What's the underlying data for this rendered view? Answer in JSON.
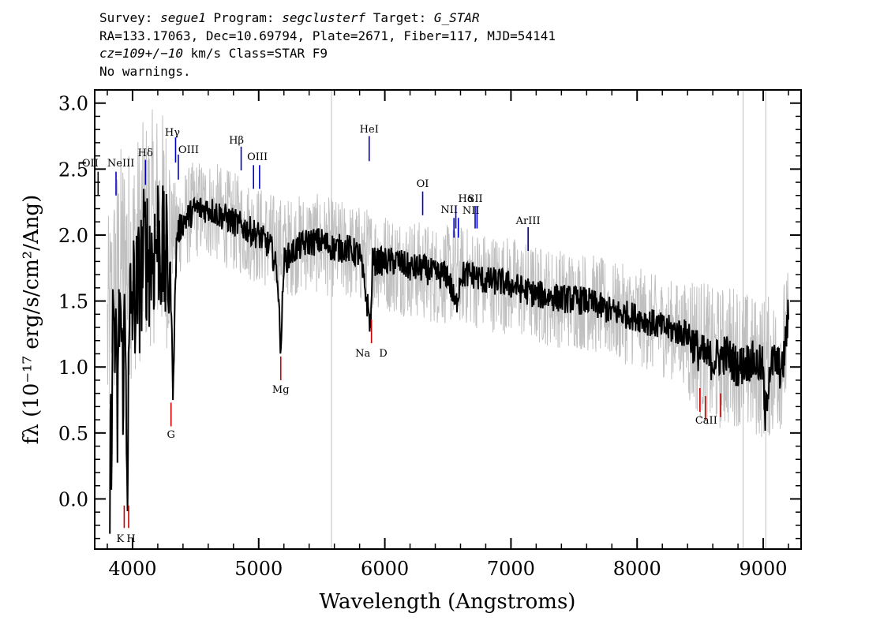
{
  "header": {
    "line1": [
      {
        "t": "Survey: ",
        "i": false
      },
      {
        "t": "segue1",
        "i": true
      },
      {
        "t": " Program: ",
        "i": false
      },
      {
        "t": "segclusterf",
        "i": true
      },
      {
        "t": " Target: ",
        "i": false
      },
      {
        "t": "G_STAR",
        "i": true
      }
    ],
    "line2": "RA=133.17063, Dec=10.69794, Plate=2671, Fiber=117, MJD=54141",
    "line3": [
      {
        "t": "cz=109+/−10",
        "i": true
      },
      {
        "t": " km/s Class=STAR F9",
        "i": false
      }
    ],
    "line4": "No warnings."
  },
  "chart_data": {
    "type": "line",
    "title": "",
    "xlabel": "Wavelength (Angstroms)",
    "ylabel": "fλ (10⁻¹⁷ erg/s/cm²/Ang)",
    "xlim": [
      3700,
      9300
    ],
    "ylim": [
      -0.38,
      3.1
    ],
    "xticks": [
      4000,
      5000,
      6000,
      7000,
      8000,
      9000
    ],
    "yticks": [
      "0.0",
      "0.5",
      "1.0",
      "1.5",
      "2.0",
      "2.5",
      "3.0"
    ],
    "series": [
      {
        "role": "smoothed flux",
        "color": "#000000",
        "x": [
          3820,
          3850,
          3880,
          3900,
          3920,
          3940,
          3960,
          3980,
          4000,
          4050,
          4100,
          4150,
          4200,
          4250,
          4300,
          4320,
          4350,
          4400,
          4500,
          4600,
          4700,
          4800,
          4900,
          5000,
          5100,
          5150,
          5170,
          5180,
          5200,
          5300,
          5400,
          5500,
          5600,
          5700,
          5800,
          5890,
          5900,
          6000,
          6100,
          6200,
          6300,
          6400,
          6500,
          6563,
          6600,
          6700,
          6800,
          6900,
          7000,
          7200,
          7400,
          7600,
          7800,
          8000,
          8200,
          8400,
          8500,
          8600,
          8700,
          8800,
          8900,
          9000,
          9010,
          9050,
          9100,
          9150,
          9200
        ],
        "y": [
          0.0,
          1.5,
          0.6,
          1.6,
          0.9,
          1.3,
          0.3,
          1.4,
          1.5,
          1.6,
          1.9,
          1.8,
          2.0,
          1.8,
          1.7,
          0.85,
          2.0,
          2.1,
          2.2,
          2.2,
          2.15,
          2.1,
          2.05,
          2.0,
          1.9,
          1.7,
          1.2,
          1.25,
          1.8,
          1.9,
          1.95,
          1.95,
          1.9,
          1.9,
          1.85,
          1.3,
          1.8,
          1.8,
          1.8,
          1.75,
          1.75,
          1.7,
          1.7,
          1.45,
          1.7,
          1.7,
          1.65,
          1.65,
          1.62,
          1.55,
          1.52,
          1.5,
          1.42,
          1.38,
          1.3,
          1.25,
          1.1,
          1.05,
          1.1,
          1.0,
          1.05,
          1.0,
          0.55,
          1.0,
          1.05,
          0.95,
          1.4
        ]
      },
      {
        "role": "raw flux",
        "color": "#c0c0c0",
        "x": [
          3800,
          3900,
          4000,
          4100,
          4200,
          4300,
          4400,
          4500,
          4600,
          4800,
          5000,
          5200,
          5400,
          5600,
          5800,
          6000,
          6200,
          6400,
          6600,
          6800,
          7000,
          7200,
          7400,
          7600,
          7800,
          8000,
          8200,
          8400,
          8600,
          8800,
          8900,
          9000,
          9100,
          9200
        ],
        "y": [
          1.2,
          1.8,
          1.8,
          2.0,
          2.1,
          2.0,
          2.1,
          2.2,
          2.2,
          2.1,
          2.0,
          1.9,
          1.95,
          1.9,
          1.85,
          1.8,
          1.75,
          1.7,
          1.7,
          1.65,
          1.62,
          1.55,
          1.52,
          1.5,
          1.42,
          1.38,
          1.3,
          1.25,
          1.05,
          1.1,
          1.0,
          1.0,
          1.0,
          1.2
        ]
      }
    ],
    "emission_lines": [
      {
        "label": "OII",
        "x": 3727,
        "y_low": 2.3,
        "y_high": 2.48,
        "color": "#000000"
      },
      {
        "label": "NeIII",
        "x": 3869,
        "y_low": 2.3,
        "y_high": 2.48,
        "color": "#0000cc"
      },
      {
        "label": "Hδ",
        "x": 4102,
        "y_low": 2.38,
        "y_high": 2.57,
        "color": "#0000cc"
      },
      {
        "label": "Hγ",
        "x": 4341,
        "y_low": 2.55,
        "y_high": 2.74,
        "color": "#0000cc"
      },
      {
        "label": "OIII",
        "x": 4363,
        "y_low": 2.42,
        "y_high": 2.61,
        "color": "#0000cc"
      },
      {
        "label": "Hβ",
        "x": 4861,
        "y_low": 2.49,
        "y_high": 2.67,
        "color": "#0000cc"
      },
      {
        "label": "OIII",
        "x": 4959,
        "y_low": 2.35,
        "y_high": 2.53,
        "color": "#0000cc"
      },
      {
        "label": "OIII",
        "x": 5007,
        "y_low": 2.35,
        "y_high": 2.53,
        "color": "#0000cc"
      },
      {
        "label": "HeI",
        "x": 5876,
        "y_low": 2.56,
        "y_high": 2.75,
        "color": "#0000cc"
      },
      {
        "label": "OI",
        "x": 6300,
        "y_low": 2.15,
        "y_high": 2.33,
        "color": "#0000cc"
      },
      {
        "label": "NII",
        "x": 6548,
        "y_low": 1.98,
        "y_high": 2.13,
        "color": "#0000cc"
      },
      {
        "label": "Hα",
        "x": 6563,
        "y_low": 2.05,
        "y_high": 2.22,
        "color": "#0000cc"
      },
      {
        "label": "NII",
        "x": 6583,
        "y_low": 1.98,
        "y_high": 2.13,
        "color": "#0000cc"
      },
      {
        "label": "SII",
        "x": 6716,
        "y_low": 2.05,
        "y_high": 2.22,
        "color": "#0000cc"
      },
      {
        "label": "SII",
        "x": 6731,
        "y_low": 2.05,
        "y_high": 2.22,
        "color": "#0000cc"
      },
      {
        "label": "ArIII",
        "x": 7136,
        "y_low": 1.88,
        "y_high": 2.06,
        "color": "#000080"
      }
    ],
    "absorption_lines": [
      {
        "label": "K",
        "x": 3934,
        "y_low": -0.22,
        "y_high": -0.05,
        "color": "#cc0000"
      },
      {
        "label": "H",
        "x": 3969,
        "y_low": -0.22,
        "y_high": -0.05,
        "color": "#cc0000"
      },
      {
        "label": "G",
        "x": 4305,
        "y_low": 0.55,
        "y_high": 0.73,
        "color": "#cc0000"
      },
      {
        "label": "Mg",
        "x": 5175,
        "y_low": 0.9,
        "y_high": 1.08,
        "color": "#cc0000"
      },
      {
        "label": "Na",
        "x": 5894,
        "y_low": 1.18,
        "y_high": 1.36,
        "color": "#cc0000"
      },
      {
        "label": "CaII",
        "x": 8498,
        "y_low": 0.66,
        "y_high": 0.84,
        "color": "#cc0000"
      },
      {
        "label": "CaII",
        "x": 8542,
        "y_low": 0.6,
        "y_high": 0.78,
        "color": "#cc0000"
      },
      {
        "label": "CaII",
        "x": 8662,
        "y_low": 0.62,
        "y_high": 0.8,
        "color": "#cc0000"
      }
    ],
    "line_label_texts": [
      {
        "text": "OII",
        "x": 3727
      },
      {
        "text": "NeIII",
        "x": 3870
      },
      {
        "text": "Hδ",
        "x": 4102
      },
      {
        "text": "Hγ",
        "x": 4341
      },
      {
        "text": "OIII",
        "x": 4363
      },
      {
        "text": "Hβ",
        "x": 4861
      },
      {
        "text": "OIII",
        "x": 4990
      },
      {
        "text": "HeI",
        "x": 5876
      },
      {
        "text": "OI",
        "x": 6300
      },
      {
        "text": "NII",
        "x": 6548
      },
      {
        "text": "Hα",
        "x": 6563
      },
      {
        "text": "SII",
        "x": 6716
      },
      {
        "text": "NII",
        "x": 6583
      },
      {
        "text": "ArIII",
        "x": 7136
      },
      {
        "text": "K",
        "x": 3934
      },
      {
        "text": "H",
        "x": 3969
      },
      {
        "text": "G",
        "x": 4305
      },
      {
        "text": "Mg",
        "x": 5175
      },
      {
        "text": "Na",
        "x": 5894
      },
      {
        "text": "D",
        "x": 5894
      },
      {
        "text": "CaII",
        "x": 8542
      }
    ]
  }
}
